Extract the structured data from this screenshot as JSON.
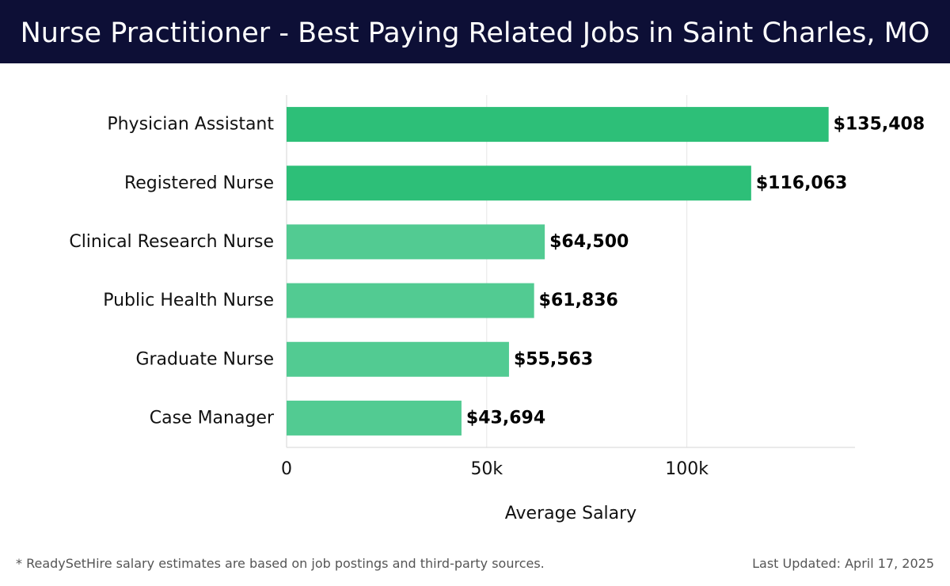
{
  "header": {
    "title": "Nurse Practitioner - Best Paying Related Jobs in Saint Charles, MO",
    "background_color": "#0d0f36"
  },
  "chart_data": {
    "type": "bar",
    "orientation": "horizontal",
    "title": "Nurse Practitioner - Best Paying Related Jobs in Saint Charles, MO",
    "xlabel": "Average Salary",
    "ylabel": "",
    "categories": [
      "Physician Assistant",
      "Registered Nurse",
      "Clinical Research Nurse",
      "Public Health Nurse",
      "Graduate Nurse",
      "Case Manager"
    ],
    "values": [
      135408,
      116063,
      64500,
      61836,
      55563,
      43694
    ],
    "value_labels": [
      "$135,408",
      "$116,063",
      "$64,500",
      "$61,836",
      "$55,563",
      "$43,694"
    ],
    "bar_colors": [
      "#2dbf78",
      "#2dbf78",
      "#52cb92",
      "#52cb92",
      "#52cb92",
      "#52cb92"
    ],
    "xlim": [
      0,
      142000
    ],
    "xticks": [
      0,
      50000,
      100000
    ],
    "xtick_labels": [
      "0",
      "50k",
      "100k"
    ],
    "grid": true,
    "legend": "none"
  },
  "footer": {
    "note": "* ReadySetHire salary estimates are based on job postings and third-party sources.",
    "updated": "Last Updated: April 17, 2025"
  }
}
